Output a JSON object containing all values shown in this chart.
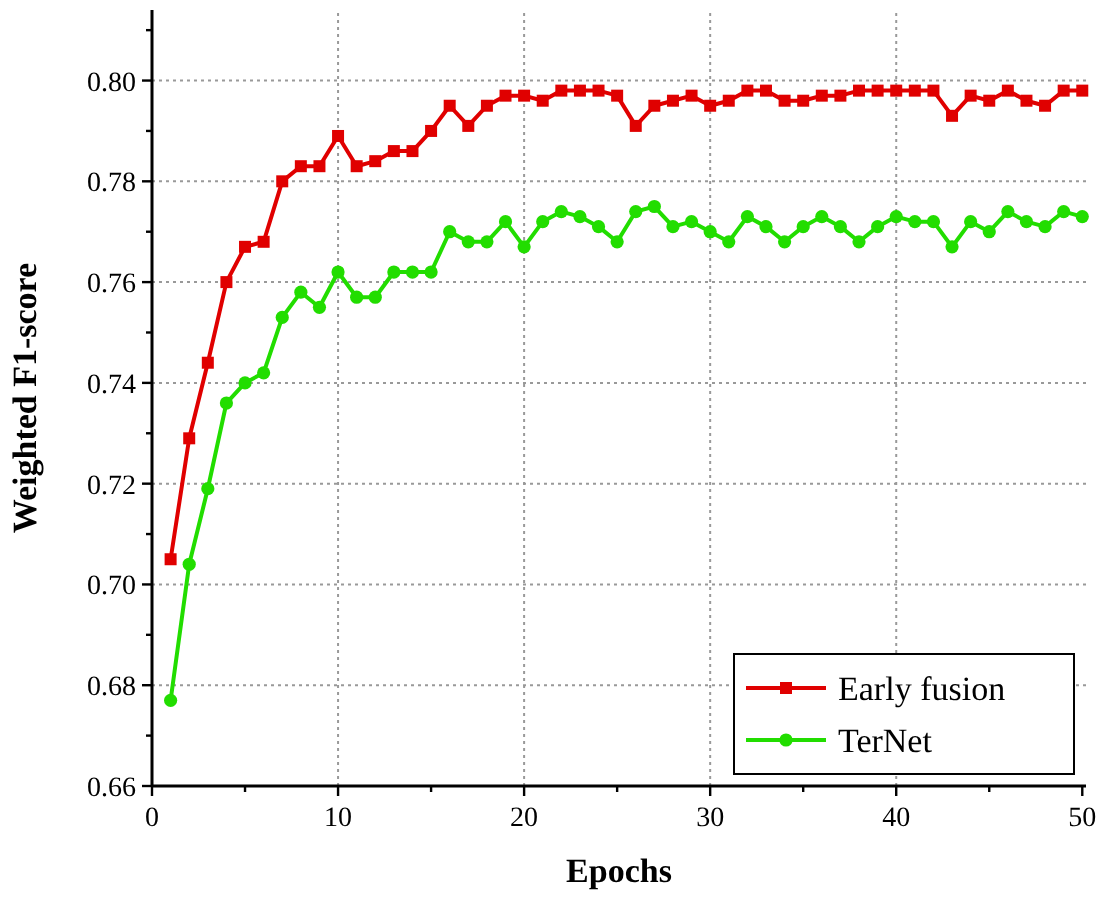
{
  "chart_data": {
    "type": "line",
    "xlabel": "Epochs",
    "ylabel": "Weighted F1-score",
    "x": [
      1,
      2,
      3,
      4,
      5,
      6,
      7,
      8,
      9,
      10,
      11,
      12,
      13,
      14,
      15,
      16,
      17,
      18,
      19,
      20,
      21,
      22,
      23,
      24,
      25,
      26,
      27,
      28,
      29,
      30,
      31,
      32,
      33,
      34,
      35,
      36,
      37,
      38,
      39,
      40,
      41,
      42,
      43,
      44,
      45,
      46,
      47,
      48,
      49,
      50
    ],
    "series": [
      {
        "name": "Early fusion",
        "color": "#e00000",
        "marker": "square",
        "values": [
          0.705,
          0.729,
          0.744,
          0.76,
          0.767,
          0.768,
          0.78,
          0.783,
          0.783,
          0.789,
          0.783,
          0.784,
          0.786,
          0.786,
          0.79,
          0.795,
          0.791,
          0.795,
          0.797,
          0.797,
          0.796,
          0.798,
          0.798,
          0.798,
          0.797,
          0.791,
          0.795,
          0.796,
          0.797,
          0.795,
          0.796,
          0.798,
          0.798,
          0.796,
          0.796,
          0.797,
          0.797,
          0.798,
          0.798,
          0.798,
          0.798,
          0.798,
          0.793,
          0.797,
          0.796,
          0.798,
          0.796,
          0.795,
          0.798,
          0.798
        ]
      },
      {
        "name": "TerNet",
        "color": "#22dd00",
        "marker": "circle",
        "values": [
          0.677,
          0.704,
          0.719,
          0.736,
          0.74,
          0.742,
          0.753,
          0.758,
          0.755,
          0.762,
          0.757,
          0.757,
          0.762,
          0.762,
          0.762,
          0.77,
          0.768,
          0.768,
          0.772,
          0.767,
          0.772,
          0.774,
          0.773,
          0.771,
          0.768,
          0.774,
          0.775,
          0.771,
          0.772,
          0.77,
          0.768,
          0.773,
          0.771,
          0.768,
          0.771,
          0.773,
          0.771,
          0.768,
          0.771,
          0.773,
          0.772,
          0.772,
          0.767,
          0.772,
          0.77,
          0.774,
          0.772,
          0.771,
          0.774,
          0.773
        ]
      }
    ],
    "xlim": [
      0,
      50.2
    ],
    "xticks": [
      0,
      {
        "value": 5,
        "label": null
      },
      10,
      {
        "value": 15,
        "label": null
      },
      20,
      {
        "value": 25,
        "label": null
      },
      30,
      {
        "value": 35,
        "label": null
      },
      40,
      {
        "value": 45,
        "label": null
      },
      50
    ],
    "ylim": [
      0.66,
      0.814
    ],
    "yticks": [
      0.66,
      {
        "value": 0.67,
        "label": null
      },
      0.68,
      {
        "value": 0.69,
        "label": null
      },
      {
        "value": 0.7,
        "label": "0.70"
      },
      {
        "value": 0.71,
        "label": null
      },
      0.72,
      {
        "value": 0.73,
        "label": null
      },
      0.74,
      {
        "value": 0.75,
        "label": null
      },
      0.76,
      {
        "value": 0.77,
        "label": null
      },
      0.78,
      {
        "value": 0.79,
        "label": null
      },
      {
        "value": 0.8,
        "label": "0.80"
      },
      {
        "value": 0.81,
        "label": null
      }
    ],
    "grid": true,
    "legend": "bottom right",
    "line_style": "solid"
  }
}
